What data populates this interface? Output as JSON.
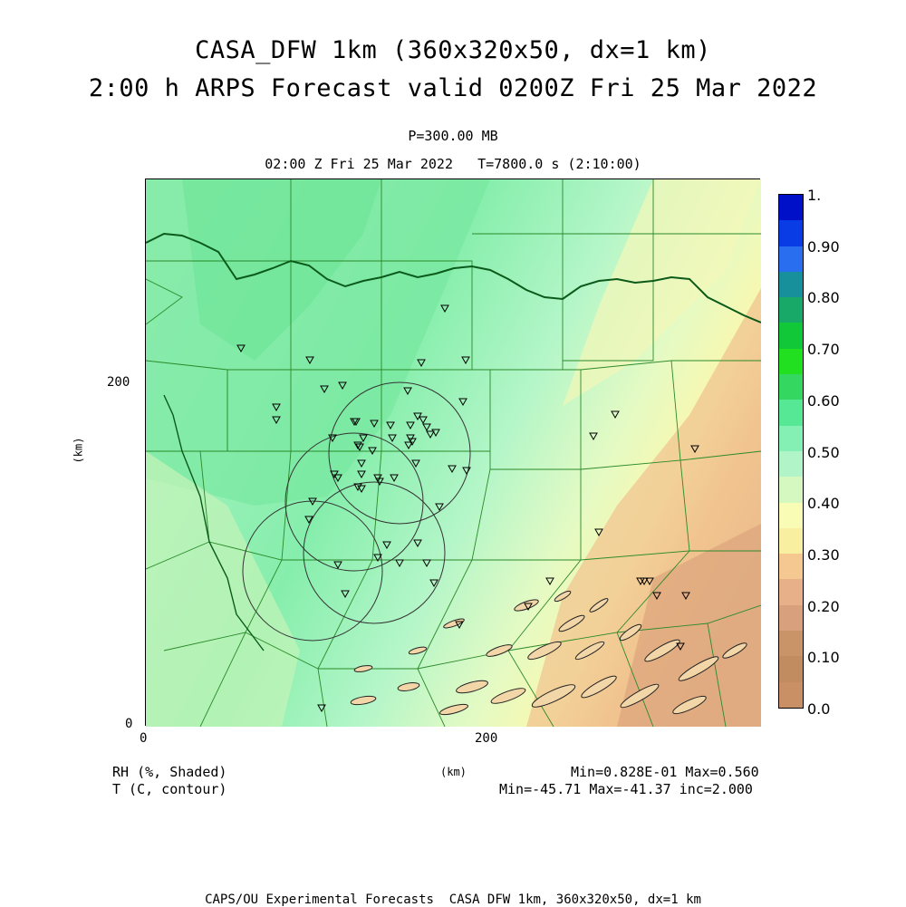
{
  "header": {
    "title_line1": "CASA_DFW 1km (360x320x50, dx=1 km)",
    "title_line2": "2:00 h ARPS Forecast valid 0200Z Fri 25 Mar 2022",
    "level": "P=300.00 MB",
    "time": "02:00 Z Fri 25 Mar 2022   T=7800.0 s (2:10:00)"
  },
  "axes": {
    "x_ticks": [
      "0",
      "200"
    ],
    "y_ticks": [
      "0",
      "200"
    ],
    "x_label": "(km)",
    "y_label": "(km)",
    "x_range_km": [
      0,
      360
    ],
    "y_range_km": [
      0,
      320
    ]
  },
  "legend": {
    "shaded_field": "RH (%, Shaded)",
    "contour_field": "T (C, contour)",
    "shaded_stats": "Min=0.828E-01 Max=0.560",
    "contour_stats": "Min=-45.71 Max=-41.37 inc=2.000"
  },
  "colorbar": {
    "labels": [
      "1.",
      "0.90",
      "0.80",
      "0.70",
      "0.60",
      "0.50",
      "0.40",
      "0.30",
      "0.20",
      "0.10",
      "0.0"
    ],
    "colors": [
      "#0010c8",
      "#0a3ce6",
      "#2a6ef0",
      "#18909c",
      "#18a868",
      "#10c838",
      "#20e020",
      "#34d860",
      "#56e894",
      "#84f0b4",
      "#b0f4c8",
      "#d4f8c0",
      "#f8fcb4",
      "#f8f0a0",
      "#f4c890",
      "#e8b088",
      "#d8a07c",
      "#c89468",
      "#c08c60",
      "#c89064"
    ]
  },
  "footer": "CAPS/OU Experimental Forecasts  CASA DFW 1km, 360x320x50, dx=1 km"
}
